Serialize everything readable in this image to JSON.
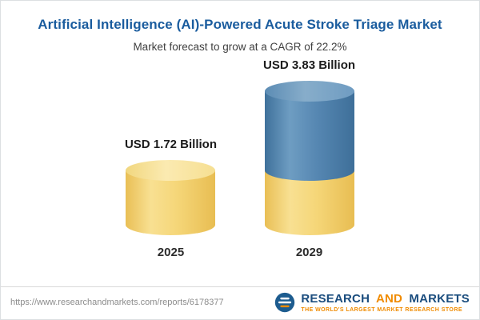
{
  "header": {
    "title": "Artificial Intelligence (AI)-Powered Acute Stroke Triage Market",
    "subtitle": "Market forecast to grow at a CAGR of 22.2%"
  },
  "chart_data": {
    "type": "bar",
    "title": "Artificial Intelligence (AI)-Powered Acute Stroke Triage Market",
    "subtitle": "Market forecast to grow at a CAGR of 22.2%",
    "cagr_percent": 22.2,
    "unit": "USD Billion",
    "categories": [
      "2025",
      "2029"
    ],
    "values": [
      1.72,
      3.83
    ],
    "value_labels": [
      "USD 1.72 Billion",
      "USD 3.83 Billion"
    ],
    "colors": {
      "base_segment": "#F3D371",
      "growth_segment": "#5687B2"
    },
    "layout": {
      "bar_style": "3d-cylinder",
      "stacked_note": "2029 cylinder shows 2025 base value in yellow with growth portion in blue on top",
      "legend": "none",
      "gridlines": false
    }
  },
  "footer": {
    "source_url": "https://www.researchandmarkets.com/reports/6178377",
    "brand": {
      "research": "RESEARCH",
      "and": "AND",
      "markets": "MARKETS",
      "tagline": "THE WORLD'S LARGEST MARKET RESEARCH STORE"
    }
  }
}
